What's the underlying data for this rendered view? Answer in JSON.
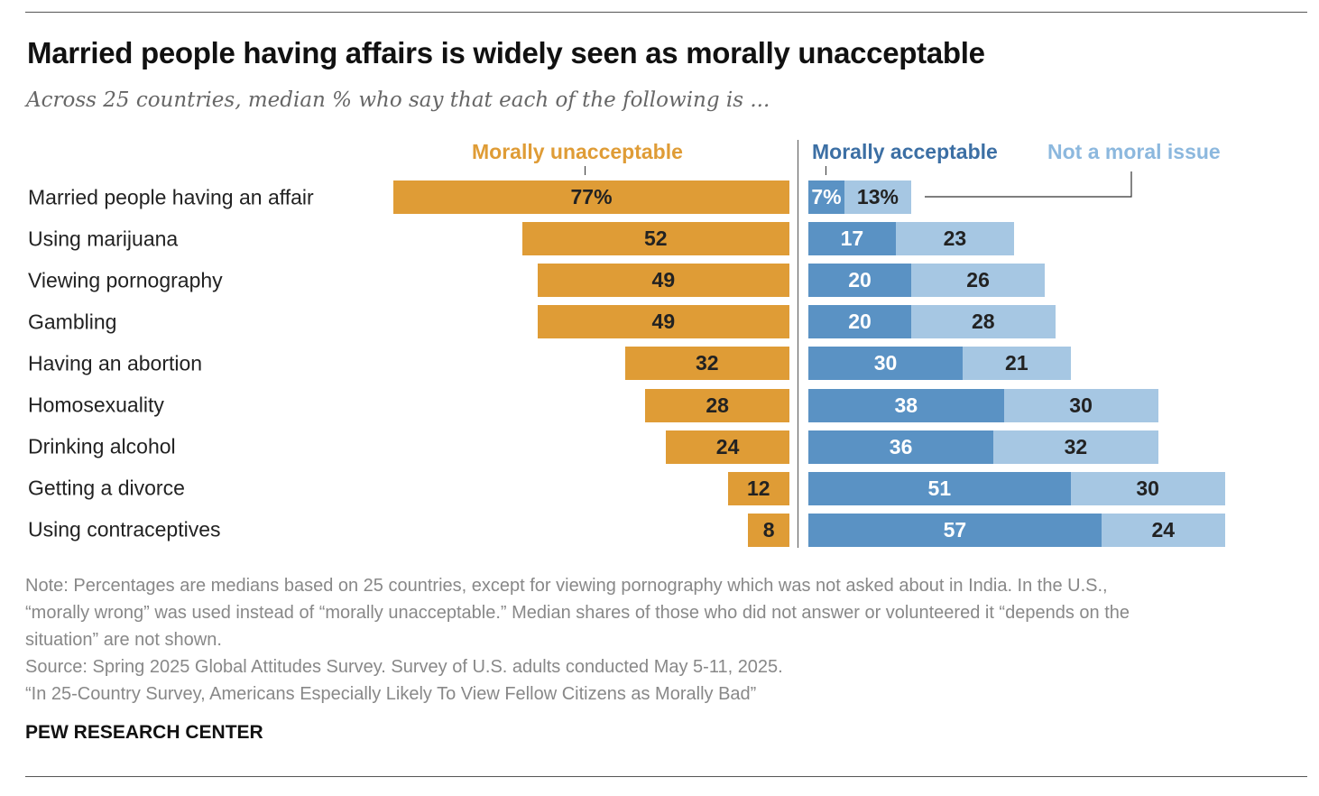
{
  "title": "Married people having affairs is widely seen as morally unacceptable",
  "subtitle": "Across 25 countries, median % who say that each of the following is ...",
  "chart_data": {
    "type": "bar",
    "orientation": "horizontal-diverging-stacked",
    "categories": [
      "Married people having an affair",
      "Using marijuana",
      "Viewing pornography",
      "Gambling",
      "Having an abortion",
      "Homosexuality",
      "Drinking alcohol",
      "Getting a divorce",
      "Using contraceptives"
    ],
    "series": [
      {
        "name": "Morally unacceptable",
        "color": "#DF9C36",
        "side": "left",
        "values": [
          77,
          52,
          49,
          49,
          32,
          28,
          24,
          12,
          8
        ]
      },
      {
        "name": "Morally acceptable",
        "color": "#5A92C4",
        "side": "right",
        "values": [
          7,
          17,
          20,
          20,
          30,
          38,
          36,
          51,
          57
        ]
      },
      {
        "name": "Not a moral issue",
        "color": "#A6C7E3",
        "side": "right",
        "values": [
          13,
          23,
          26,
          28,
          21,
          30,
          32,
          30,
          24
        ]
      }
    ],
    "first_row_labels": [
      "77%",
      "7%",
      "13%"
    ],
    "legend_colors": {
      "unacceptable": "#DF9C36",
      "acceptable": "#3C6FA4",
      "not_moral": "#8CB8DE"
    },
    "xlim": [
      0,
      100
    ]
  },
  "notes": [
    "Note: Percentages are medians based on 25 countries, except for viewing pornography which was not asked about in India. In the U.S.,",
    "“morally wrong” was used instead of “morally unacceptable.” Median shares of those who did not answer or volunteered it “depends on the",
    "situation” are not shown.",
    "Source: Spring 2025 Global Attitudes Survey. Survey of U.S. adults conducted May 5-11, 2025.",
    "“In 25-Country Survey, Americans Especially Likely To View Fellow Citizens as Morally Bad”"
  ],
  "brand": "PEW RESEARCH CENTER"
}
